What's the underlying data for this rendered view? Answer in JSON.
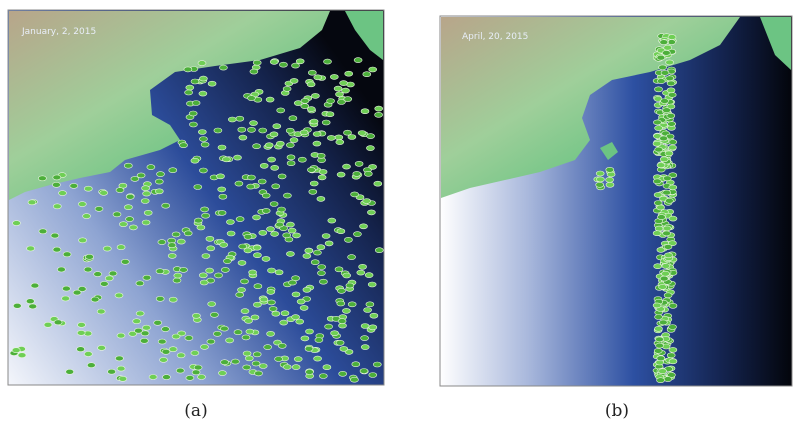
{
  "panels": [
    {
      "date": "January, 2, 2015",
      "caption": "(a)"
    },
    {
      "date": "April, 20, 2015",
      "caption": "(b)"
    }
  ]
}
